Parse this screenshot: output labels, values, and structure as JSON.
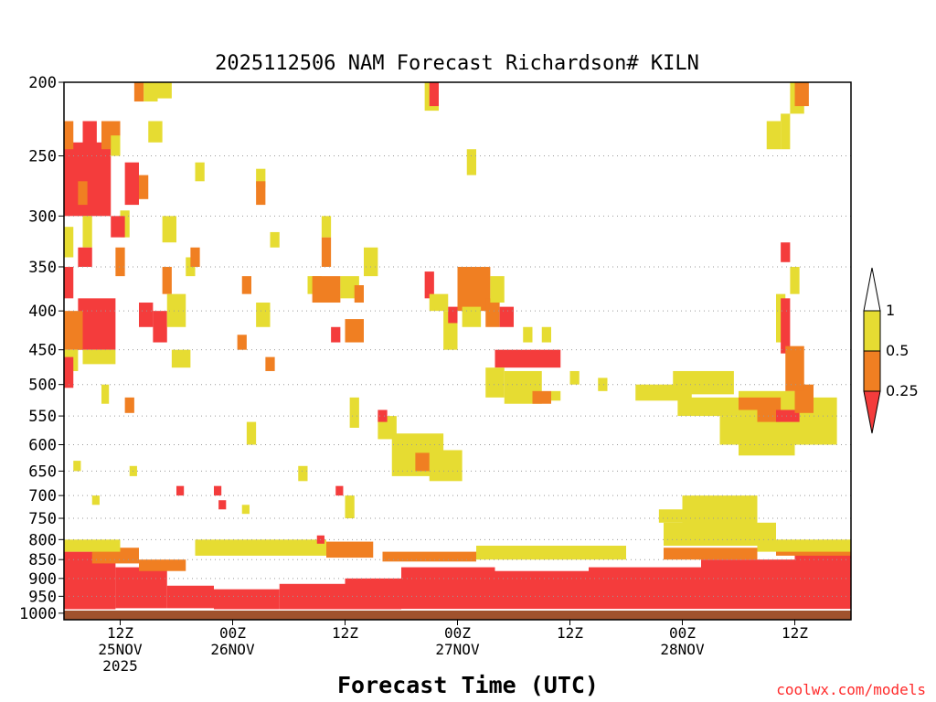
{
  "chart_data": {
    "type": "heatmap",
    "title": "2025112506 NAM Forecast Richardson# KILN",
    "xlabel": "Forecast Time (UTC)",
    "ylabel": "",
    "y_axis": {
      "levels": [
        1000,
        950,
        900,
        850,
        800,
        750,
        700,
        650,
        600,
        550,
        500,
        450,
        400,
        350,
        300,
        250,
        200
      ],
      "tick_labels": [
        "1000",
        "950",
        "900",
        "850",
        "800",
        "750",
        "700",
        "650",
        "600",
        "550",
        "500",
        "450",
        "400",
        "350",
        "300",
        "250",
        "200"
      ],
      "range": [
        1000,
        200
      ],
      "gridlines_dotted_at": [
        950,
        900,
        850,
        800,
        750,
        700,
        650,
        600,
        550,
        500,
        450,
        400,
        350,
        300,
        250
      ]
    },
    "x_axis": {
      "range_hours": [
        6,
        90
      ],
      "ticks": [
        {
          "hour": 12,
          "line1": "12Z",
          "line2": "25NOV",
          "line3": "2025"
        },
        {
          "hour": 24,
          "line1": "00Z",
          "line2": "26NOV",
          "line3": ""
        },
        {
          "hour": 36,
          "line1": "12Z",
          "line2": "",
          "line3": ""
        },
        {
          "hour": 48,
          "line1": "00Z",
          "line2": "27NOV",
          "line3": ""
        },
        {
          "hour": 60,
          "line1": "12Z",
          "line2": "",
          "line3": ""
        },
        {
          "hour": 72,
          "line1": "00Z",
          "line2": "28NOV",
          "line3": ""
        },
        {
          "hour": 84,
          "line1": "12Z",
          "line2": "",
          "line3": ""
        }
      ]
    },
    "legend": {
      "placement": "right",
      "entries": [
        {
          "label": "1",
          "color": "#e6dc32"
        },
        {
          "label": "0.5",
          "color": "#f07f22"
        },
        {
          "label": "0.25",
          "color": "#f43c3c"
        }
      ]
    },
    "colors": {
      "ge_1": "#ffffff",
      "lt_1": "#e6dc32",
      "lt_0_5": "#f07f22",
      "lt_0_25": "#f43c3c",
      "below_ground": "#a0522d"
    },
    "surface_pressure_hpa": 990,
    "regions": [
      {
        "class": "lt_0_25",
        "t0": 6.0,
        "t1": 11.5,
        "p0": 830,
        "p1": 990
      },
      {
        "class": "lt_0_25",
        "t0": 11.5,
        "t1": 17.0,
        "p0": 870,
        "p1": 985
      },
      {
        "class": "lt_0_25",
        "t0": 17.0,
        "t1": 22.0,
        "p0": 920,
        "p1": 985
      },
      {
        "class": "lt_0_25",
        "t0": 22.0,
        "t1": 29.0,
        "p0": 930,
        "p1": 988
      },
      {
        "class": "lt_0_25",
        "t0": 29.0,
        "t1": 36.0,
        "p0": 915,
        "p1": 988
      },
      {
        "class": "lt_0_25",
        "t0": 36.0,
        "t1": 42.0,
        "p0": 900,
        "p1": 988
      },
      {
        "class": "lt_0_25",
        "t0": 42.0,
        "t1": 52.0,
        "p0": 870,
        "p1": 987
      },
      {
        "class": "lt_0_25",
        "t0": 52.0,
        "t1": 62.0,
        "p0": 880,
        "p1": 987
      },
      {
        "class": "lt_0_25",
        "t0": 62.0,
        "t1": 74.0,
        "p0": 870,
        "p1": 987
      },
      {
        "class": "lt_0_25",
        "t0": 74.0,
        "t1": 84.0,
        "p0": 850,
        "p1": 987
      },
      {
        "class": "lt_0_25",
        "t0": 84.0,
        "t1": 90.0,
        "p0": 830,
        "p1": 987
      },
      {
        "class": "lt_0_5",
        "t0": 9.0,
        "t1": 14.0,
        "p0": 820,
        "p1": 860
      },
      {
        "class": "lt_0_5",
        "t0": 14.0,
        "t1": 19.0,
        "p0": 850,
        "p1": 880
      },
      {
        "class": "lt_0_5",
        "t0": 34.0,
        "t1": 39.0,
        "p0": 805,
        "p1": 845
      },
      {
        "class": "lt_0_5",
        "t0": 40.0,
        "t1": 50.0,
        "p0": 830,
        "p1": 855
      },
      {
        "class": "lt_0_5",
        "t0": 70.0,
        "t1": 80.0,
        "p0": 820,
        "p1": 850
      },
      {
        "class": "lt_0_5",
        "t0": 82.0,
        "t1": 90.0,
        "p0": 815,
        "p1": 840
      },
      {
        "class": "lt_1",
        "t0": 6.0,
        "t1": 12.0,
        "p0": 800,
        "p1": 830
      },
      {
        "class": "lt_1",
        "t0": 20.0,
        "t1": 34.0,
        "p0": 800,
        "p1": 840
      },
      {
        "class": "lt_1",
        "t0": 50.0,
        "t1": 66.0,
        "p0": 815,
        "p1": 850
      },
      {
        "class": "lt_1",
        "t0": 70.0,
        "t1": 82.0,
        "p0": 760,
        "p1": 815
      },
      {
        "class": "lt_1",
        "t0": 80.0,
        "t1": 90.0,
        "p0": 800,
        "p1": 830
      },
      {
        "class": "lt_1",
        "t0": 69.5,
        "t1": 72.0,
        "p0": 730,
        "p1": 760
      },
      {
        "class": "lt_1",
        "t0": 72.0,
        "t1": 80.0,
        "p0": 700,
        "p1": 790
      },
      {
        "class": "lt_0_25",
        "t0": 6.0,
        "t1": 11.0,
        "p0": 240,
        "p1": 300
      },
      {
        "class": "lt_0_5",
        "t0": 7.5,
        "t1": 8.5,
        "p0": 270,
        "p1": 290
      },
      {
        "class": "lt_0_5",
        "t0": 6.0,
        "t1": 7.0,
        "p0": 225,
        "p1": 245
      },
      {
        "class": "lt_0_25",
        "t0": 8.0,
        "t1": 9.5,
        "p0": 225,
        "p1": 245
      },
      {
        "class": "lt_0_5",
        "t0": 10.0,
        "t1": 12.0,
        "p0": 225,
        "p1": 245
      },
      {
        "class": "lt_1",
        "t0": 11.0,
        "t1": 12.0,
        "p0": 235,
        "p1": 250
      },
      {
        "class": "lt_1",
        "t0": 12.0,
        "t1": 13.0,
        "p0": 295,
        "p1": 320
      },
      {
        "class": "lt_0_25",
        "t0": 11.0,
        "t1": 12.5,
        "p0": 300,
        "p1": 320
      },
      {
        "class": "lt_1",
        "t0": 8.0,
        "t1": 9.0,
        "p0": 300,
        "p1": 330
      },
      {
        "class": "lt_0_25",
        "t0": 6.0,
        "t1": 7.0,
        "p0": 350,
        "p1": 385
      },
      {
        "class": "lt_0_25",
        "t0": 7.5,
        "t1": 9.0,
        "p0": 330,
        "p1": 350
      },
      {
        "class": "lt_1",
        "t0": 6.0,
        "t1": 7.0,
        "p0": 310,
        "p1": 340
      },
      {
        "class": "lt_0_25",
        "t0": 7.5,
        "t1": 11.5,
        "p0": 385,
        "p1": 450
      },
      {
        "class": "lt_0_5",
        "t0": 6.0,
        "t1": 8.0,
        "p0": 400,
        "p1": 450
      },
      {
        "class": "lt_1",
        "t0": 6.0,
        "t1": 7.5,
        "p0": 450,
        "p1": 480
      },
      {
        "class": "lt_0_25",
        "t0": 6.0,
        "t1": 7.0,
        "p0": 460,
        "p1": 505
      },
      {
        "class": "lt_1",
        "t0": 8.0,
        "t1": 11.5,
        "p0": 450,
        "p1": 470
      },
      {
        "class": "lt_0_5",
        "t0": 11.5,
        "t1": 12.5,
        "p0": 330,
        "p1": 360
      },
      {
        "class": "lt_0_25",
        "t0": 12.5,
        "t1": 14.0,
        "p0": 255,
        "p1": 290
      },
      {
        "class": "lt_0_5",
        "t0": 14.0,
        "t1": 15.0,
        "p0": 265,
        "p1": 285
      },
      {
        "class": "lt_1",
        "t0": 14.5,
        "t1": 16.0,
        "p0": 200,
        "p1": 212
      },
      {
        "class": "lt_0_5",
        "t0": 13.5,
        "t1": 14.5,
        "p0": 200,
        "p1": 212
      },
      {
        "class": "lt_1",
        "t0": 16.0,
        "t1": 17.5,
        "p0": 200,
        "p1": 210
      },
      {
        "class": "lt_1",
        "t0": 15.0,
        "t1": 16.5,
        "p0": 225,
        "p1": 240
      },
      {
        "class": "lt_1",
        "t0": 16.5,
        "t1": 18.0,
        "p0": 300,
        "p1": 325
      },
      {
        "class": "lt_0_5",
        "t0": 16.5,
        "t1": 17.5,
        "p0": 350,
        "p1": 380
      },
      {
        "class": "lt_0_25",
        "t0": 14.0,
        "t1": 15.5,
        "p0": 390,
        "p1": 420
      },
      {
        "class": "lt_0_25",
        "t0": 15.5,
        "t1": 17.0,
        "p0": 400,
        "p1": 440
      },
      {
        "class": "lt_1",
        "t0": 17.0,
        "t1": 19.0,
        "p0": 380,
        "p1": 420
      },
      {
        "class": "lt_1",
        "t0": 17.5,
        "t1": 19.5,
        "p0": 450,
        "p1": 475
      },
      {
        "class": "lt_1",
        "t0": 19.0,
        "t1": 20.0,
        "p0": 340,
        "p1": 360
      },
      {
        "class": "lt_0_5",
        "t0": 19.5,
        "t1": 20.5,
        "p0": 330,
        "p1": 350
      },
      {
        "class": "lt_1",
        "t0": 20.0,
        "t1": 21.0,
        "p0": 255,
        "p1": 270
      },
      {
        "class": "lt_1",
        "t0": 26.5,
        "t1": 27.5,
        "p0": 260,
        "p1": 275
      },
      {
        "class": "lt_0_5",
        "t0": 26.5,
        "t1": 27.5,
        "p0": 270,
        "p1": 290
      },
      {
        "class": "lt_0_5",
        "t0": 25.0,
        "t1": 26.0,
        "p0": 360,
        "p1": 380
      },
      {
        "class": "lt_1",
        "t0": 26.5,
        "t1": 28.0,
        "p0": 390,
        "p1": 420
      },
      {
        "class": "lt_0_5",
        "t0": 24.5,
        "t1": 25.5,
        "p0": 430,
        "p1": 450
      },
      {
        "class": "lt_0_5",
        "t0": 27.5,
        "t1": 28.5,
        "p0": 460,
        "p1": 480
      },
      {
        "class": "lt_1",
        "t0": 28.0,
        "t1": 29.0,
        "p0": 315,
        "p1": 330
      },
      {
        "class": "lt_1",
        "t0": 32.0,
        "t1": 33.5,
        "p0": 360,
        "p1": 380
      },
      {
        "class": "lt_0_5",
        "t0": 32.5,
        "t1": 35.5,
        "p0": 360,
        "p1": 390
      },
      {
        "class": "lt_0_5",
        "t0": 33.5,
        "t1": 34.5,
        "p0": 320,
        "p1": 350
      },
      {
        "class": "lt_1",
        "t0": 33.5,
        "t1": 34.5,
        "p0": 300,
        "p1": 320
      },
      {
        "class": "lt_1",
        "t0": 35.5,
        "t1": 37.5,
        "p0": 360,
        "p1": 385
      },
      {
        "class": "lt_0_5",
        "t0": 36.0,
        "t1": 38.0,
        "p0": 410,
        "p1": 440
      },
      {
        "class": "lt_0_25",
        "t0": 34.5,
        "t1": 35.5,
        "p0": 420,
        "p1": 440
      },
      {
        "class": "lt_1",
        "t0": 38.0,
        "t1": 39.5,
        "p0": 330,
        "p1": 360
      },
      {
        "class": "lt_0_5",
        "t0": 37.0,
        "t1": 38.0,
        "p0": 370,
        "p1": 390
      },
      {
        "class": "lt_1",
        "t0": 36.5,
        "t1": 37.5,
        "p0": 520,
        "p1": 570
      },
      {
        "class": "lt_1",
        "t0": 39.5,
        "t1": 41.5,
        "p0": 550,
        "p1": 590
      },
      {
        "class": "lt_0_25",
        "t0": 39.5,
        "t1": 40.5,
        "p0": 540,
        "p1": 560
      },
      {
        "class": "lt_1",
        "t0": 41.0,
        "t1": 46.5,
        "p0": 580,
        "p1": 660
      },
      {
        "class": "lt_0_5",
        "t0": 43.5,
        "t1": 45.5,
        "p0": 615,
        "p1": 650
      },
      {
        "class": "lt_1",
        "t0": 45.0,
        "t1": 48.5,
        "p0": 610,
        "p1": 670
      },
      {
        "class": "lt_1",
        "t0": 44.5,
        "t1": 46.0,
        "p0": 200,
        "p1": 218
      },
      {
        "class": "lt_0_25",
        "t0": 45.0,
        "t1": 46.0,
        "p0": 200,
        "p1": 215
      },
      {
        "class": "lt_0_25",
        "t0": 44.5,
        "t1": 45.5,
        "p0": 355,
        "p1": 385
      },
      {
        "class": "lt_1",
        "t0": 45.0,
        "t1": 47.0,
        "p0": 380,
        "p1": 400
      },
      {
        "class": "lt_1",
        "t0": 46.5,
        "t1": 48.0,
        "p0": 400,
        "p1": 450
      },
      {
        "class": "lt_0_25",
        "t0": 47.0,
        "t1": 48.0,
        "p0": 395,
        "p1": 415
      },
      {
        "class": "lt_0_5",
        "t0": 48.0,
        "t1": 51.5,
        "p0": 350,
        "p1": 400
      },
      {
        "class": "lt_1",
        "t0": 48.5,
        "t1": 50.5,
        "p0": 395,
        "p1": 420
      },
      {
        "class": "lt_1",
        "t0": 49.0,
        "t1": 50.0,
        "p0": 245,
        "p1": 265
      },
      {
        "class": "lt_0_5",
        "t0": 51.0,
        "t1": 52.5,
        "p0": 385,
        "p1": 420
      },
      {
        "class": "lt_1",
        "t0": 51.5,
        "t1": 53.0,
        "p0": 360,
        "p1": 390
      },
      {
        "class": "lt_0_25",
        "t0": 52.5,
        "t1": 54.0,
        "p0": 395,
        "p1": 420
      },
      {
        "class": "lt_0_25",
        "t0": 52.0,
        "t1": 59.0,
        "p0": 450,
        "p1": 475
      },
      {
        "class": "lt_1",
        "t0": 51.0,
        "t1": 53.0,
        "p0": 475,
        "p1": 520
      },
      {
        "class": "lt_1",
        "t0": 53.0,
        "t1": 57.0,
        "p0": 480,
        "p1": 530
      },
      {
        "class": "lt_0_5",
        "t0": 56.0,
        "t1": 58.0,
        "p0": 510,
        "p1": 530
      },
      {
        "class": "lt_1",
        "t0": 58.0,
        "t1": 59.0,
        "p0": 510,
        "p1": 525
      },
      {
        "class": "lt_1",
        "t0": 55.0,
        "t1": 56.0,
        "p0": 420,
        "p1": 440
      },
      {
        "class": "lt_1",
        "t0": 57.0,
        "t1": 58.0,
        "p0": 420,
        "p1": 440
      },
      {
        "class": "lt_1",
        "t0": 60.0,
        "t1": 61.0,
        "p0": 480,
        "p1": 500
      },
      {
        "class": "lt_1",
        "t0": 63.0,
        "t1": 64.0,
        "p0": 490,
        "p1": 510
      },
      {
        "class": "lt_1",
        "t0": 67.0,
        "t1": 73.0,
        "p0": 500,
        "p1": 525
      },
      {
        "class": "lt_1",
        "t0": 71.0,
        "t1": 77.5,
        "p0": 480,
        "p1": 515
      },
      {
        "class": "lt_1",
        "t0": 71.5,
        "t1": 78.0,
        "p0": 520,
        "p1": 550
      },
      {
        "class": "lt_1",
        "t0": 76.0,
        "t1": 78.5,
        "p0": 550,
        "p1": 600
      },
      {
        "class": "lt_1",
        "t0": 78.0,
        "t1": 84.0,
        "p0": 510,
        "p1": 620
      },
      {
        "class": "lt_1",
        "t0": 84.0,
        "t1": 88.5,
        "p0": 520,
        "p1": 600
      },
      {
        "class": "lt_0_5",
        "t0": 78.0,
        "t1": 80.0,
        "p0": 520,
        "p1": 540
      },
      {
        "class": "lt_0_5",
        "t0": 80.0,
        "t1": 82.5,
        "p0": 520,
        "p1": 560
      },
      {
        "class": "lt_0_25",
        "t0": 82.0,
        "t1": 84.5,
        "p0": 540,
        "p1": 560
      },
      {
        "class": "lt_0_5",
        "t0": 84.0,
        "t1": 86.0,
        "p0": 500,
        "p1": 545
      },
      {
        "class": "lt_1",
        "t0": 82.0,
        "t1": 83.0,
        "p0": 380,
        "p1": 440
      },
      {
        "class": "lt_0_25",
        "t0": 82.5,
        "t1": 83.5,
        "p0": 325,
        "p1": 345
      },
      {
        "class": "lt_0_25",
        "t0": 82.5,
        "t1": 83.5,
        "p0": 385,
        "p1": 455
      },
      {
        "class": "lt_0_5",
        "t0": 83.0,
        "t1": 85.0,
        "p0": 445,
        "p1": 510
      },
      {
        "class": "lt_1",
        "t0": 83.5,
        "t1": 84.5,
        "p0": 350,
        "p1": 380
      },
      {
        "class": "lt_1",
        "t0": 81.0,
        "t1": 82.5,
        "p0": 225,
        "p1": 245
      },
      {
        "class": "lt_1",
        "t0": 83.5,
        "t1": 85.0,
        "p0": 200,
        "p1": 220
      },
      {
        "class": "lt_0_5",
        "t0": 84.0,
        "t1": 85.5,
        "p0": 200,
        "p1": 215
      },
      {
        "class": "lt_1",
        "t0": 82.5,
        "t1": 83.5,
        "p0": 220,
        "p1": 245
      },
      {
        "class": "lt_1",
        "t0": 7.0,
        "t1": 7.8,
        "p0": 630,
        "p1": 650
      },
      {
        "class": "lt_1",
        "t0": 9.0,
        "t1": 9.8,
        "p0": 700,
        "p1": 720
      },
      {
        "class": "lt_1",
        "t0": 10.0,
        "t1": 10.8,
        "p0": 500,
        "p1": 530
      },
      {
        "class": "lt_0_5",
        "t0": 12.5,
        "t1": 13.5,
        "p0": 520,
        "p1": 545
      },
      {
        "class": "lt_1",
        "t0": 13.0,
        "t1": 13.8,
        "p0": 640,
        "p1": 660
      },
      {
        "class": "lt_0_25",
        "t0": 18.0,
        "t1": 18.8,
        "p0": 680,
        "p1": 700
      },
      {
        "class": "lt_0_25",
        "t0": 22.0,
        "t1": 22.8,
        "p0": 680,
        "p1": 700
      },
      {
        "class": "lt_0_25",
        "t0": 22.5,
        "t1": 23.3,
        "p0": 710,
        "p1": 730
      },
      {
        "class": "lt_1",
        "t0": 25.0,
        "t1": 25.8,
        "p0": 720,
        "p1": 740
      },
      {
        "class": "lt_0_25",
        "t0": 35.0,
        "t1": 35.8,
        "p0": 680,
        "p1": 700
      },
      {
        "class": "lt_1",
        "t0": 36.0,
        "t1": 37.0,
        "p0": 700,
        "p1": 750
      },
      {
        "class": "lt_0_25",
        "t0": 33.0,
        "t1": 33.8,
        "p0": 790,
        "p1": 810
      },
      {
        "class": "lt_1",
        "t0": 31.0,
        "t1": 32.0,
        "p0": 640,
        "p1": 670
      },
      {
        "class": "lt_1",
        "t0": 25.5,
        "t1": 26.5,
        "p0": 560,
        "p1": 600
      }
    ]
  },
  "credit": "coolwx.com/models"
}
